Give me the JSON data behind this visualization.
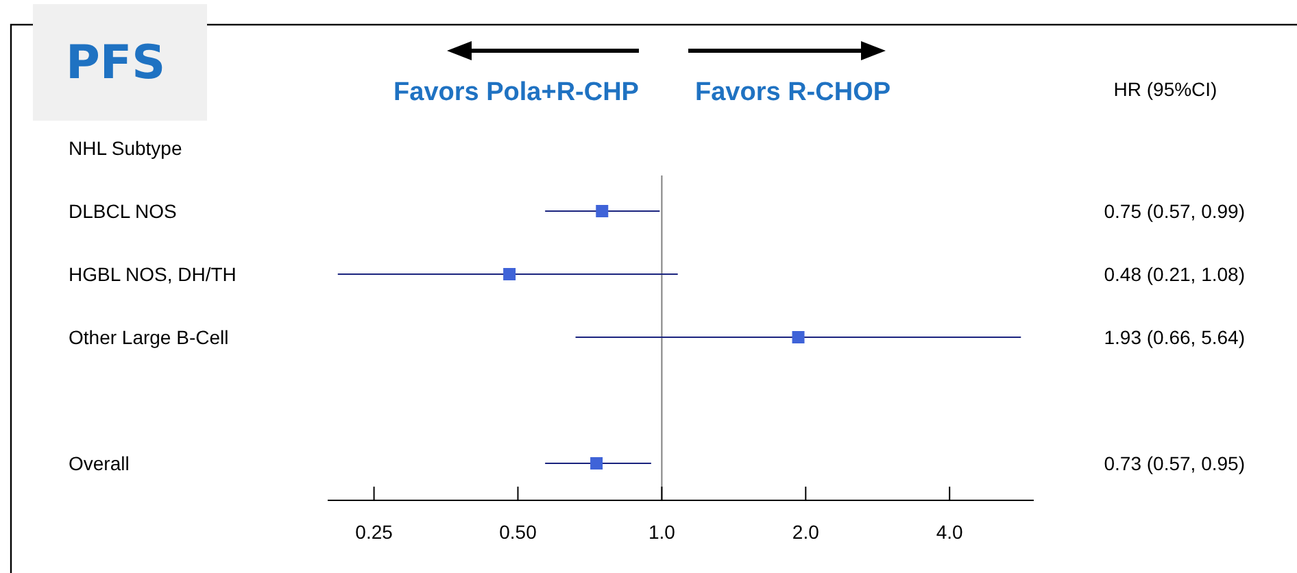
{
  "chart_data": {
    "type": "scatter",
    "orientation": "horizontal",
    "title": "PFS",
    "categories": [
      "NHL Subtype",
      "DLBCL NOS",
      "HGBL NOS, DH/TH",
      "Other Large B-Cell",
      null,
      "Overall"
    ],
    "values": [
      null,
      0.75,
      0.48,
      1.93,
      null,
      0.73
    ],
    "errors": [
      null,
      [
        0.57,
        0.99
      ],
      [
        0.21,
        1.08
      ],
      [
        0.66,
        5.64
      ],
      null,
      [
        0.57,
        0.95
      ]
    ],
    "value_labels": [
      null,
      "0.75 (0.57, 0.99)",
      "0.48 (0.21, 1.08)",
      "1.93 (0.66, 5.64)",
      null,
      "0.73 (0.57, 0.95)"
    ],
    "color": "#3f63d8",
    "marker": "square",
    "log": "x",
    "xlim": [
      0.2,
      6
    ],
    "xticks": [
      {
        "value": 0.25,
        "label": "0.25"
      },
      {
        "value": 0.5,
        "label": "0.50"
      },
      {
        "value": 1,
        "label": "1.0"
      },
      {
        "value": 2,
        "label": "2.0"
      },
      {
        "value": 4,
        "label": "4.0"
      }
    ],
    "ref_lines": [
      {
        "axis": "x",
        "value": 1,
        "color": "#808080"
      }
    ],
    "annotations": [
      "HR (95%CI)",
      "Favors Pola+R-CHP",
      "Favors R-CHOP"
    ]
  }
}
